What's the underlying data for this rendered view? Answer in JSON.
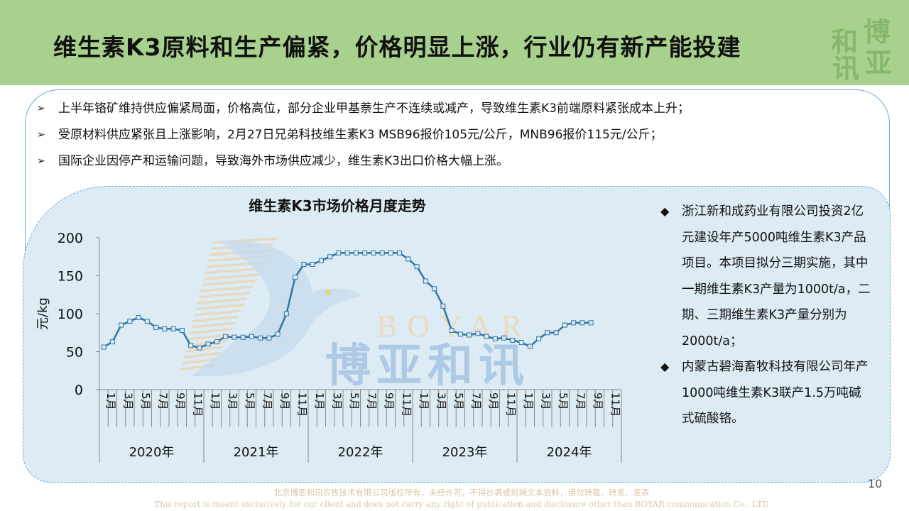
{
  "title": "维生素K3原料和生产偏紧，价格明显上涨，行业仍有新产能投建",
  "seal_chars": [
    "和",
    "博",
    "讯",
    "亚"
  ],
  "bullets": [
    "上半年铬矿维持供应偏紧局面，价格高位，部分企业甲基萘生产不连续或减产，导致维生素K3前端原料紧张成本上升；",
    "受原材料供应紧张且上涨影响，2月27日兄弟科技维生素K3  MSB96报价105元/公斤，MNB96报价115元/公斤；",
    "国际企业因停产和运输问题，导致海外市场供应减少，维生素K3出口价格大幅上涨。"
  ],
  "right_bullets": [
    "浙江新和成药业有限公司投资2亿元建设年产5000吨维生素K3产品项目。本项目拟分三期实施，其中一期维生素K3产量为1000t/a，二期、三期维生素K3产量分别为2000t/a；",
    "内蒙古碧海畜牧科技有限公司年产1000吨维生素K3联产1.5万吨碱式硫酸铬。"
  ],
  "watermark": {
    "en": "BOYAR",
    "cn": "博亚和讯"
  },
  "page_number": "10",
  "footer": {
    "line1": "北京博亚和讯农牧技术有限公司版权所有，未经许可，不得抄袭或剪辑文本资料，请勿转载、转发、发表",
    "line2": "This report is meant exclusively for our client and does not carry any right of publication and disclosure other than BOYAR communication Co., LTD"
  },
  "colors": {
    "header": "#a9d18e",
    "line": "#2e75a6",
    "marker": "#dce9f3",
    "panel_border": "#6aaed6"
  },
  "chart_data": {
    "type": "line",
    "title": "维生素K3市场价格月度走势",
    "ylabel": "元/kg",
    "xlabel": "",
    "ylim": [
      0,
      200
    ],
    "yticks": [
      0,
      50,
      100,
      150,
      200
    ],
    "years": [
      "2020年",
      "2021年",
      "2022年",
      "2023年",
      "2024年"
    ],
    "month_labels": [
      "1月",
      "3月",
      "5月",
      "7月",
      "9月",
      "11月"
    ],
    "months_per_year": 12,
    "grid": false,
    "legend": "none",
    "series": [
      {
        "values": [
          56,
          63,
          85,
          90,
          95,
          90,
          82,
          80,
          80,
          78,
          58,
          55,
          60,
          63,
          70,
          69,
          69,
          70,
          68,
          68,
          73,
          100,
          148,
          165,
          165,
          170,
          175,
          180,
          180,
          180,
          180,
          180,
          180,
          180,
          180,
          172,
          162,
          143,
          133,
          110,
          78,
          73,
          72,
          74,
          70,
          67,
          68,
          65,
          62,
          57,
          67,
          75,
          75,
          85,
          88,
          88,
          88
        ]
      }
    ]
  }
}
